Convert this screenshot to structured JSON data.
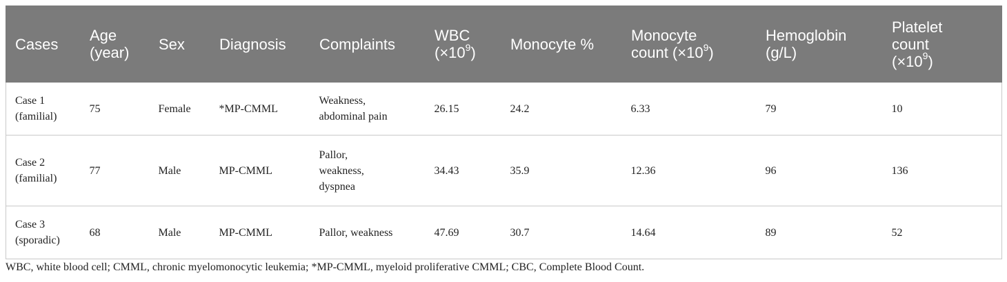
{
  "table": {
    "headers": [
      {
        "label": "Cases"
      },
      {
        "label": "Age",
        "label2": "(year)"
      },
      {
        "label": "Sex"
      },
      {
        "label": "Diagnosis"
      },
      {
        "label": "Complaints"
      },
      {
        "label": "WBC",
        "label2": "(×10",
        "sup": "9",
        "suffix": ")"
      },
      {
        "label": "Monocyte %"
      },
      {
        "label": "Monocyte",
        "label2": "count (×10",
        "sup": "9",
        "suffix": ")"
      },
      {
        "label": "Hemoglobin",
        "label2": "(g/L)"
      },
      {
        "label": "Platelet",
        "label2": "count",
        "label3": "(×10",
        "sup": "9",
        "suffix": ")"
      }
    ],
    "rows": [
      {
        "case": [
          "Case 1",
          "(familial)"
        ],
        "age": "75",
        "sex": "Female",
        "diagnosis": "*MP-CMML",
        "complaints": [
          "Weakness,",
          "abdominal pain"
        ],
        "wbc": "26.15",
        "monocyte_pct": "24.2",
        "monocyte_count": "6.33",
        "hemoglobin": "79",
        "platelet": "10"
      },
      {
        "case": [
          "Case 2",
          "(familial)"
        ],
        "age": "77",
        "sex": "Male",
        "diagnosis": "MP-CMML",
        "complaints": [
          "Pallor,",
          "weakness,",
          "dyspnea"
        ],
        "wbc": "34.43",
        "monocyte_pct": "35.9",
        "monocyte_count": "12.36",
        "hemoglobin": "96",
        "platelet": "136"
      },
      {
        "case": [
          "Case 3",
          "(sporadic)"
        ],
        "age": "68",
        "sex": "Male",
        "diagnosis": "MP-CMML",
        "complaints": [
          "Pallor, weakness"
        ],
        "wbc": "47.69",
        "monocyte_pct": "30.7",
        "monocyte_count": "14.64",
        "hemoglobin": "89",
        "platelet": "52"
      }
    ]
  },
  "footnote": "WBC, white blood cell; CMML, chronic myelomonocytic leukemia; *MP-CMML, myeloid proliferative CMML; CBC, Complete Blood Count."
}
